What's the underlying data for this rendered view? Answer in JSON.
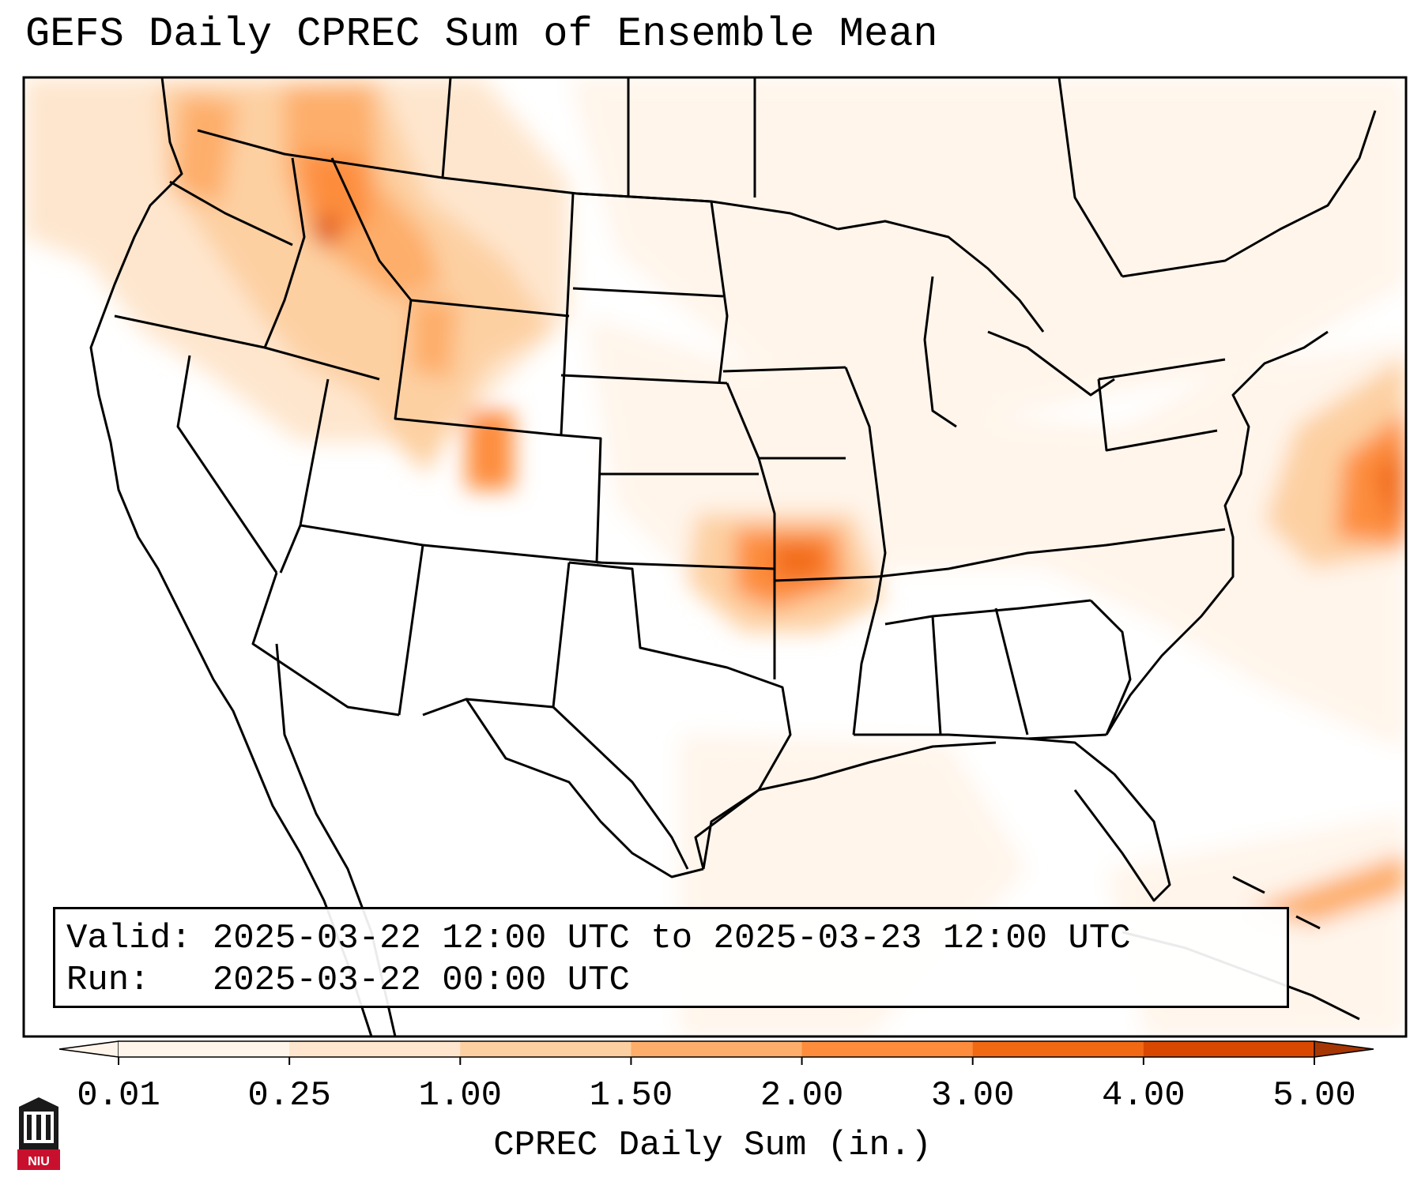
{
  "title": "GEFS Daily CPREC Sum of Ensemble Mean",
  "info": {
    "valid_label": "Valid:",
    "valid_value": "2025-03-22 12:00 UTC to 2025-03-23 12:00 UTC",
    "run_label": "Run:",
    "run_value": "2025-03-22 00:00 UTC"
  },
  "colorbar": {
    "label": "CPREC Daily Sum (in.)",
    "ticks": [
      "0.01",
      "0.25",
      "1.00",
      "1.50",
      "2.00",
      "3.00",
      "4.00",
      "5.00"
    ],
    "colors": [
      "#fff5eb",
      "#fee6ce",
      "#fdd0a2",
      "#fdae6b",
      "#fd8d3c",
      "#f16913",
      "#d94801",
      "#a63603"
    ],
    "extend": "both"
  },
  "logo": {
    "text": "NIU",
    "color": "#c8102e"
  },
  "map": {
    "region": "Continental United States",
    "colors": {
      "border": "#000000",
      "background": "#ffffff"
    }
  }
}
